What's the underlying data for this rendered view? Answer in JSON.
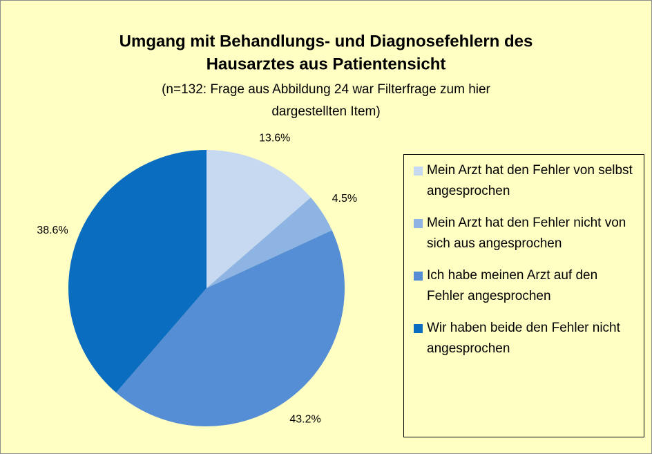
{
  "chart_data": {
    "type": "pie",
    "title": [
      "Umgang mit Behandlungs- und Diagnosefehlern des",
      "Hausarztes aus Patientensicht"
    ],
    "subtitle": [
      "(n=132: Frage aus Abbildung 24 war Filterfrage zum hier",
      "dargestellten Item)"
    ],
    "categories": [
      "Mein Arzt hat den Fehler von selbst angesprochen",
      "Mein Arzt hat den Fehler nicht von sich aus angesprochen",
      "Ich habe meinen Arzt auf den Fehler angesprochen",
      "Wir haben beide den Fehler nicht angesprochen"
    ],
    "values": [
      13.6,
      4.5,
      43.2,
      38.6
    ],
    "value_labels": [
      "13.6%",
      "4.5%",
      "43.2%",
      "38.6%"
    ],
    "colors": [
      "#c6d9f1",
      "#8eb4e3",
      "#558ed5",
      "#0b6dbf"
    ],
    "legend": "right"
  }
}
